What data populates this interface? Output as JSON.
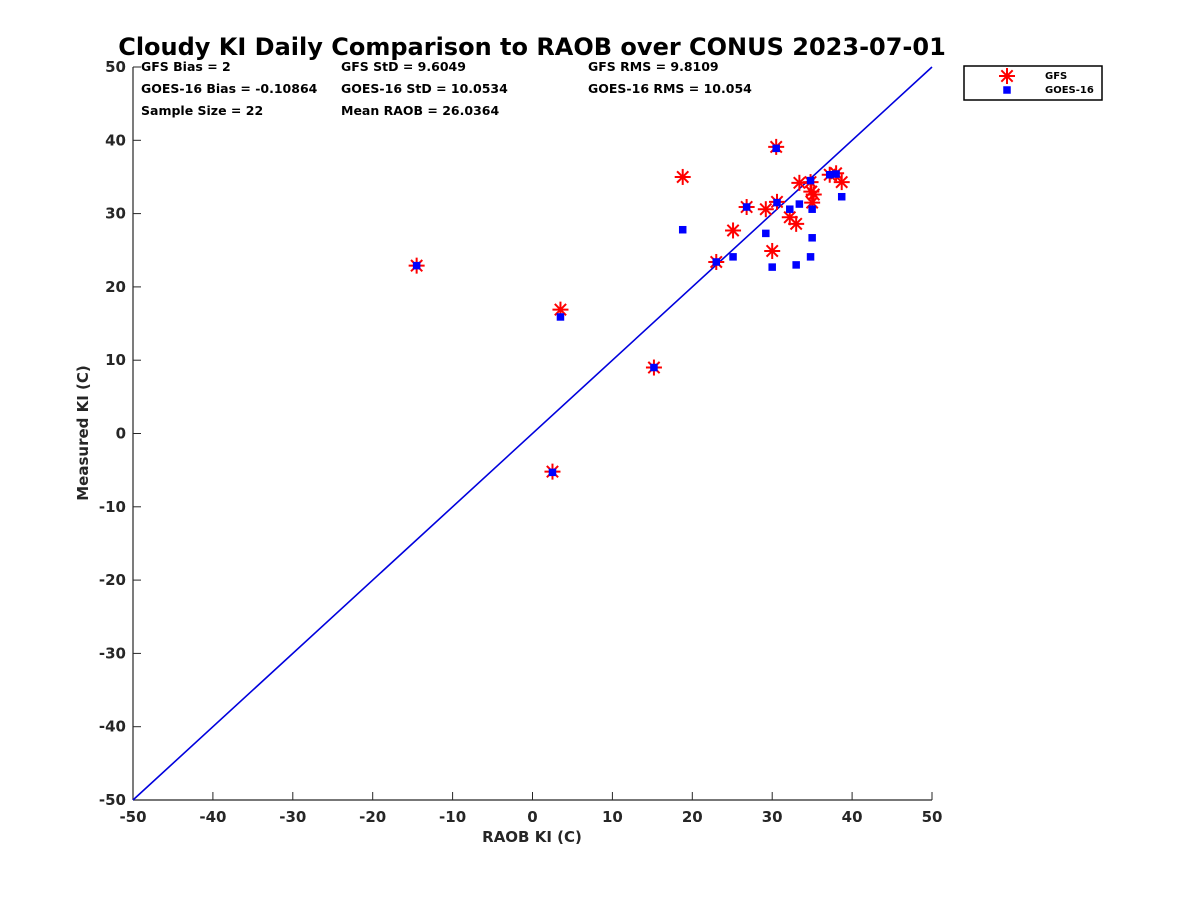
{
  "chart_data": {
    "type": "scatter",
    "title": "Cloudy KI Daily Comparison to RAOB over CONUS 2023-07-01",
    "xlabel": "RAOB KI (C)",
    "ylabel": "Measured KI (C)",
    "xlim": [
      -50,
      50
    ],
    "ylim": [
      -50,
      50
    ],
    "xticks": [
      "-50",
      "-40",
      "-30",
      "-20",
      "-10",
      "0",
      "10",
      "20",
      "30",
      "40",
      "50"
    ],
    "yticks": [
      "-50",
      "-40",
      "-30",
      "-20",
      "-10",
      "0",
      "10",
      "20",
      "30",
      "40",
      "50"
    ],
    "grid": false,
    "legend_position": "top-right",
    "reference_line": "one-to-one",
    "line_color": "#0000dd",
    "stats": [
      [
        "GFS Bias = 2",
        "GFS StD = 9.6049",
        "GFS RMS = 9.8109"
      ],
      [
        "GOES-16 Bias = -0.10864",
        "GOES-16 StD = 10.0534",
        "GOES-16 RMS = 10.054"
      ],
      [
        "Sample Size = 22",
        "Mean RAOB = 26.0364"
      ]
    ],
    "series": [
      {
        "name": "GFS",
        "marker": "asterisk",
        "color": "#ff0000",
        "points": [
          [
            -14.5,
            22.9
          ],
          [
            3.5,
            16.9
          ],
          [
            2.5,
            -5.2
          ],
          [
            15.2,
            9.0
          ],
          [
            18.8,
            35.0
          ],
          [
            23.0,
            23.4
          ],
          [
            25.1,
            27.7
          ],
          [
            26.8,
            30.9
          ],
          [
            29.2,
            30.6
          ],
          [
            30.0,
            24.9
          ],
          [
            30.5,
            39.1
          ],
          [
            30.6,
            31.6
          ],
          [
            32.2,
            29.5
          ],
          [
            33.0,
            28.6
          ],
          [
            33.4,
            34.2
          ],
          [
            34.8,
            34.3
          ],
          [
            35.0,
            31.5
          ],
          [
            35.2,
            32.6
          ],
          [
            37.2,
            35.3
          ],
          [
            38.0,
            35.5
          ],
          [
            38.7,
            34.3
          ],
          [
            34.9,
            33.0
          ]
        ]
      },
      {
        "name": "GOES-16",
        "marker": "square",
        "color": "#0000ff",
        "points": [
          [
            -14.5,
            22.9
          ],
          [
            3.5,
            15.9
          ],
          [
            2.5,
            -5.3
          ],
          [
            15.2,
            9.0
          ],
          [
            18.8,
            27.8
          ],
          [
            23.0,
            23.4
          ],
          [
            25.1,
            24.1
          ],
          [
            26.8,
            30.9
          ],
          [
            29.2,
            27.3
          ],
          [
            30.0,
            22.7
          ],
          [
            30.5,
            38.9
          ],
          [
            30.6,
            31.5
          ],
          [
            32.2,
            30.6
          ],
          [
            33.0,
            23.0
          ],
          [
            33.4,
            31.3
          ],
          [
            34.8,
            34.5
          ],
          [
            35.0,
            30.6
          ],
          [
            35.0,
            26.7
          ],
          [
            34.8,
            24.1
          ],
          [
            37.2,
            35.3
          ],
          [
            38.0,
            35.4
          ],
          [
            38.7,
            32.3
          ]
        ]
      }
    ]
  }
}
